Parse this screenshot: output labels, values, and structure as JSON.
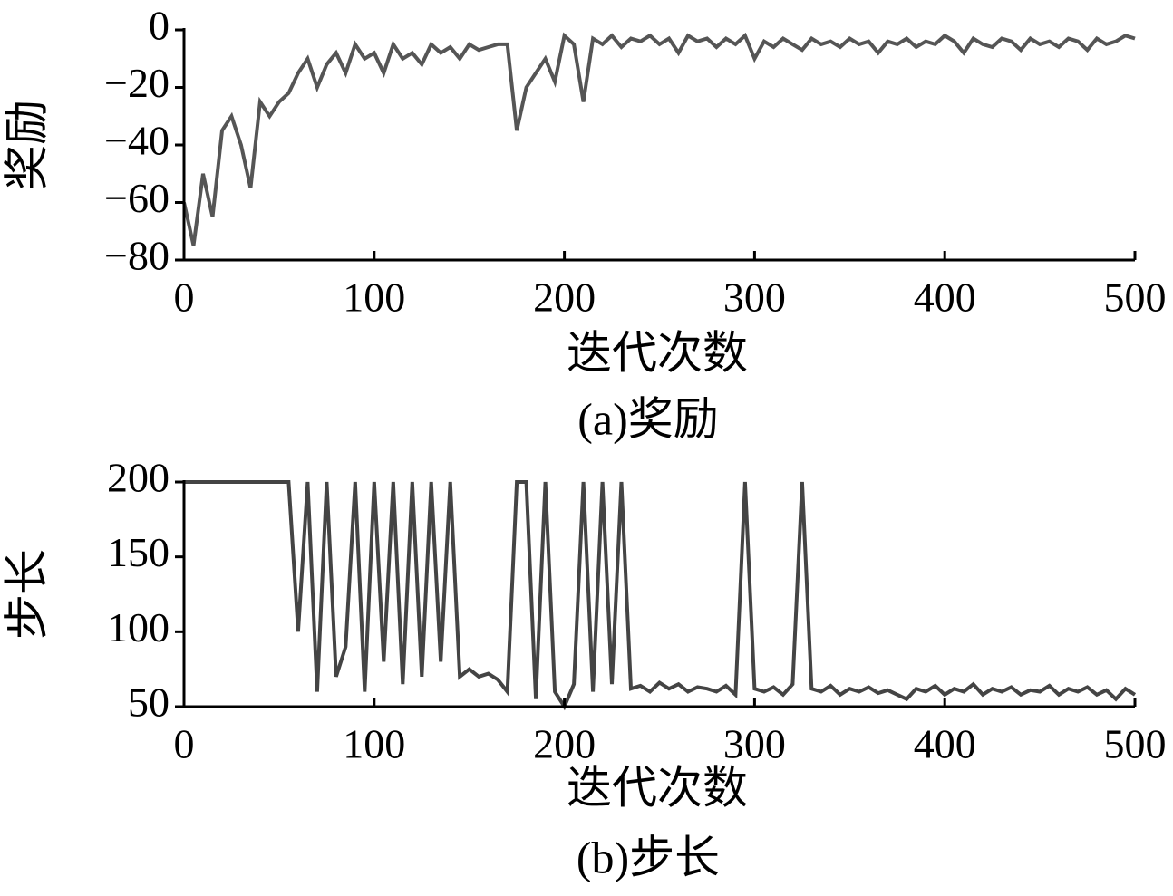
{
  "chart_data": [
    {
      "type": "line",
      "y_label": "奖励",
      "x_label": "迭代次数",
      "caption": "(a)奖励",
      "color": "#555555",
      "xlim": [
        0,
        500
      ],
      "xticks": [
        0,
        100,
        200,
        300,
        400,
        500
      ],
      "ylim": [
        -80,
        0
      ],
      "yticks": [
        {
          "value": -80,
          "label": "−80"
        },
        {
          "value": -60,
          "label": "−60"
        },
        {
          "value": -40,
          "label": "−40"
        },
        {
          "value": -20,
          "label": "−20"
        },
        0
      ],
      "x": [
        0,
        5,
        10,
        15,
        20,
        25,
        30,
        35,
        40,
        45,
        50,
        55,
        60,
        65,
        70,
        75,
        80,
        85,
        90,
        95,
        100,
        105,
        110,
        115,
        120,
        125,
        130,
        135,
        140,
        145,
        150,
        155,
        160,
        165,
        170,
        175,
        180,
        185,
        190,
        195,
        200,
        205,
        210,
        215,
        220,
        225,
        230,
        235,
        240,
        245,
        250,
        255,
        260,
        265,
        270,
        275,
        280,
        285,
        290,
        295,
        300,
        305,
        310,
        315,
        320,
        325,
        330,
        335,
        340,
        345,
        350,
        355,
        360,
        365,
        370,
        375,
        380,
        385,
        390,
        395,
        400,
        405,
        410,
        415,
        420,
        425,
        430,
        435,
        440,
        445,
        450,
        455,
        460,
        465,
        470,
        475,
        480,
        485,
        490,
        495,
        500
      ],
      "values": [
        -60,
        -75,
        -50,
        -65,
        -35,
        -30,
        -40,
        -55,
        -25,
        -30,
        -25,
        -22,
        -15,
        -10,
        -20,
        -12,
        -8,
        -15,
        -5,
        -10,
        -8,
        -15,
        -5,
        -10,
        -8,
        -12,
        -5,
        -8,
        -6,
        -10,
        -5,
        -7,
        -6,
        -5,
        -5,
        -35,
        -20,
        -15,
        -10,
        -18,
        -2,
        -5,
        -25,
        -3,
        -5,
        -2,
        -6,
        -3,
        -4,
        -2,
        -5,
        -3,
        -8,
        -2,
        -4,
        -3,
        -6,
        -3,
        -5,
        -2,
        -10,
        -4,
        -6,
        -3,
        -5,
        -7,
        -3,
        -5,
        -4,
        -6,
        -3,
        -5,
        -4,
        -8,
        -4,
        -5,
        -3,
        -6,
        -4,
        -5,
        -2,
        -4,
        -8,
        -3,
        -5,
        -6,
        -3,
        -4,
        -7,
        -3,
        -5,
        -4,
        -6,
        -3,
        -4,
        -7,
        -3,
        -5,
        -4,
        -2,
        -3
      ]
    },
    {
      "type": "line",
      "y_label": "步长",
      "x_label": "迭代次数",
      "caption": "(b)步长",
      "color": "#444444",
      "xlim": [
        0,
        500
      ],
      "xticks": [
        0,
        100,
        200,
        300,
        400,
        500
      ],
      "ylim": [
        50,
        200
      ],
      "yticks": [
        50,
        100,
        150,
        200
      ],
      "x": [
        0,
        5,
        10,
        15,
        20,
        25,
        30,
        35,
        40,
        45,
        50,
        55,
        60,
        65,
        70,
        75,
        80,
        85,
        90,
        95,
        100,
        105,
        110,
        115,
        120,
        125,
        130,
        135,
        140,
        145,
        150,
        155,
        160,
        165,
        170,
        175,
        180,
        185,
        190,
        195,
        200,
        205,
        210,
        215,
        220,
        225,
        230,
        235,
        240,
        245,
        250,
        255,
        260,
        265,
        270,
        275,
        280,
        285,
        290,
        295,
        300,
        305,
        310,
        315,
        320,
        325,
        330,
        335,
        340,
        345,
        350,
        355,
        360,
        365,
        370,
        375,
        380,
        385,
        390,
        395,
        400,
        405,
        410,
        415,
        420,
        425,
        430,
        435,
        440,
        445,
        450,
        455,
        460,
        465,
        470,
        475,
        480,
        485,
        490,
        495,
        500
      ],
      "values": [
        200,
        200,
        200,
        200,
        200,
        200,
        200,
        200,
        200,
        200,
        200,
        200,
        100,
        200,
        60,
        200,
        70,
        90,
        200,
        60,
        200,
        80,
        200,
        65,
        200,
        70,
        200,
        80,
        200,
        70,
        75,
        70,
        72,
        68,
        60,
        200,
        200,
        55,
        200,
        60,
        50,
        65,
        200,
        60,
        200,
        65,
        200,
        62,
        64,
        60,
        66,
        62,
        65,
        60,
        63,
        62,
        60,
        64,
        58,
        200,
        62,
        60,
        63,
        58,
        65,
        200,
        62,
        60,
        64,
        58,
        62,
        60,
        63,
        59,
        61,
        58,
        55,
        62,
        60,
        64,
        58,
        62,
        60,
        65,
        58,
        62,
        60,
        63,
        58,
        61,
        60,
        64,
        58,
        62,
        60,
        63,
        58,
        61,
        55,
        62,
        58
      ]
    }
  ]
}
